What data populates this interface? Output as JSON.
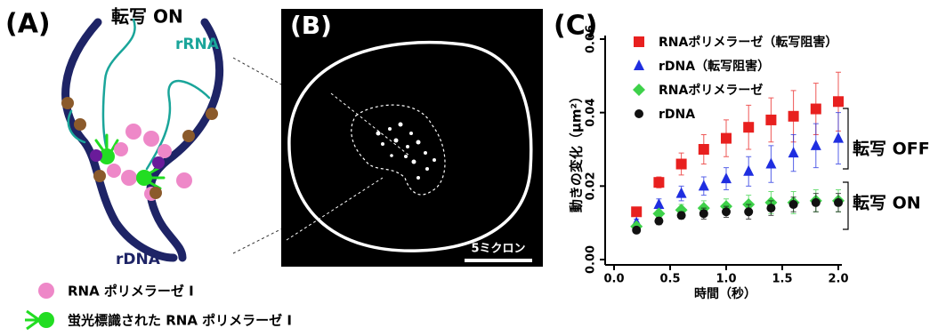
{
  "panels": {
    "a": {
      "label": "(A)",
      "state": "転写 ON",
      "rrna": "rRNA",
      "rdna": "rDNA",
      "legend": [
        "RNA ポリメラーゼ I",
        "蛍光標識された RNA ポリメラーゼ I"
      ]
    },
    "b": {
      "label": "(B)",
      "scale_bar": "5ミクロン"
    }
  },
  "chart_data": {
    "type": "scatter",
    "panel_label": "(C)",
    "x_label": "時間（秒）",
    "y_label": "動きの変化（μm²）",
    "x": [
      0.2,
      0.4,
      0.6,
      0.8,
      1.0,
      1.2,
      1.4,
      1.6,
      1.8,
      2.0
    ],
    "series": [
      {
        "name": "RNAポリメラーゼ（転写阻害）",
        "color": "#e8201f",
        "marker": "square",
        "values": [
          0.013,
          0.021,
          0.026,
          0.03,
          0.033,
          0.036,
          0.038,
          0.039,
          0.041,
          0.043
        ],
        "errors": [
          0.001,
          0.0015,
          0.003,
          0.004,
          0.005,
          0.006,
          0.006,
          0.007,
          0.007,
          0.008
        ]
      },
      {
        "name": "rDNA（転写阻害）",
        "color": "#1f2ee0",
        "marker": "triangle",
        "values": [
          0.01,
          0.015,
          0.018,
          0.02,
          0.022,
          0.024,
          0.026,
          0.029,
          0.031,
          0.033
        ],
        "errors": [
          0.001,
          0.0015,
          0.002,
          0.0025,
          0.003,
          0.004,
          0.005,
          0.005,
          0.006,
          0.007
        ]
      },
      {
        "name": "RNAポリメラーゼ",
        "color": "#3ed14a",
        "marker": "diamond",
        "values": [
          0.009,
          0.0125,
          0.0135,
          0.014,
          0.0145,
          0.015,
          0.0155,
          0.0155,
          0.016,
          0.016
        ],
        "errors": [
          0.0008,
          0.001,
          0.0015,
          0.002,
          0.002,
          0.0025,
          0.003,
          0.003,
          0.003,
          0.003
        ]
      },
      {
        "name": "rDNA",
        "color": "#111111",
        "marker": "circle",
        "values": [
          0.008,
          0.0105,
          0.012,
          0.0125,
          0.013,
          0.013,
          0.014,
          0.015,
          0.0155,
          0.0155
        ],
        "errors": [
          0.0008,
          0.001,
          0.001,
          0.0015,
          0.0015,
          0.002,
          0.002,
          0.002,
          0.0025,
          0.0025
        ]
      }
    ],
    "xlim": [
      0,
      2.0
    ],
    "ylim": [
      0,
      0.06
    ],
    "xticks": [
      {
        "value": 0,
        "label": "0.0"
      },
      0.5,
      {
        "value": 1,
        "label": "1.0"
      },
      1.5,
      {
        "value": 2,
        "label": "2.0"
      }
    ],
    "yticks": [
      {
        "value": 0,
        "label": "0.00"
      },
      {
        "value": 0.02,
        "label": "0.02"
      },
      {
        "value": 0.04,
        "label": "0.04"
      },
      {
        "value": 0.06,
        "label": "0.06"
      }
    ],
    "annotations": [
      "転写 OFF",
      "転写 ON"
    ]
  }
}
